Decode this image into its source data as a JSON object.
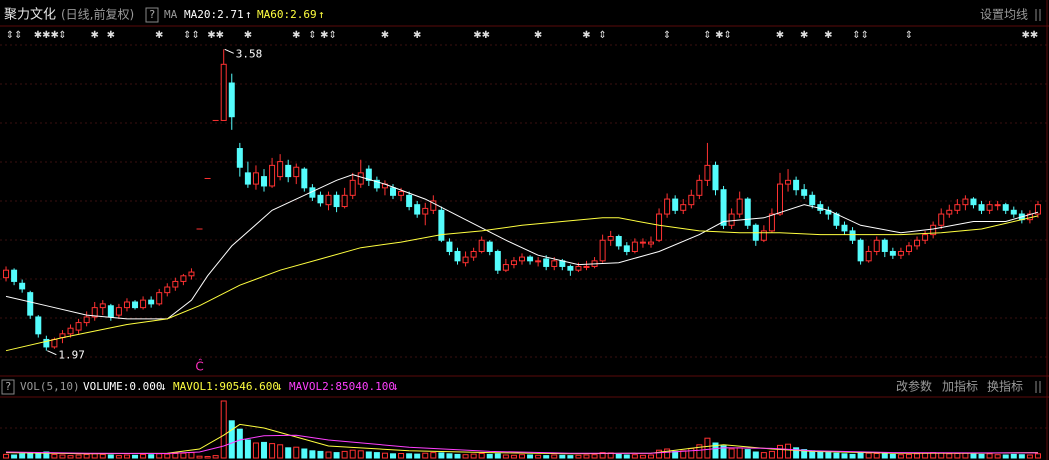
{
  "chart_data": [
    {
      "type": "candlestick",
      "title": "聚力文化",
      "subtitle": "(日线,前复权)",
      "help": "?",
      "ma_label": "MA",
      "settings_button": "设置均线",
      "ylim": [
        1.84,
        3.71
      ],
      "up_color": "#ff3232",
      "down_color": "#54fcfc",
      "open": [
        2.36,
        2.4,
        2.33,
        2.28,
        2.15,
        2.03,
        1.99,
        2.04,
        2.06,
        2.08,
        2.12,
        2.15,
        2.2,
        2.21,
        2.16,
        2.2,
        2.23,
        2.2,
        2.24,
        2.22,
        2.28,
        2.31,
        2.34,
        2.37,
        2.62,
        2.89,
        3.2,
        3.2,
        3.4,
        3.05,
        2.92,
        2.86,
        2.9,
        2.85,
        2.9,
        2.96,
        2.9,
        2.94,
        2.84,
        2.8,
        2.75,
        2.8,
        2.74,
        2.8,
        2.86,
        2.94,
        2.88,
        2.84,
        2.84,
        2.8,
        2.8,
        2.75,
        2.7,
        2.72,
        2.72,
        2.55,
        2.5,
        2.44,
        2.47,
        2.5,
        2.55,
        2.5,
        2.4,
        2.43,
        2.45,
        2.47,
        2.45,
        2.46,
        2.42,
        2.45,
        2.42,
        2.4,
        2.42,
        2.42,
        2.45,
        2.56,
        2.58,
        2.53,
        2.5,
        2.55,
        2.54,
        2.56,
        2.7,
        2.78,
        2.72,
        2.75,
        2.8,
        2.88,
        2.96,
        2.83,
        2.64,
        2.7,
        2.78,
        2.64,
        2.56,
        2.61,
        2.7,
        2.86,
        2.88,
        2.83,
        2.8,
        2.75,
        2.72,
        2.7,
        2.64,
        2.61,
        2.56,
        2.45,
        2.5,
        2.56,
        2.5,
        2.48,
        2.5,
        2.53,
        2.56,
        2.59,
        2.64,
        2.7,
        2.72,
        2.75,
        2.78,
        2.75,
        2.72,
        2.75,
        2.75,
        2.72,
        2.7,
        2.67,
        2.7
      ],
      "high": [
        2.42,
        2.41,
        2.35,
        2.29,
        2.16,
        2.05,
        2.04,
        2.08,
        2.11,
        2.14,
        2.18,
        2.23,
        2.24,
        2.22,
        2.22,
        2.25,
        2.24,
        2.26,
        2.26,
        2.3,
        2.33,
        2.36,
        2.38,
        2.41,
        2.62,
        2.89,
        3.2,
        3.58,
        3.45,
        3.08,
        2.98,
        2.96,
        2.94,
        3.0,
        3.02,
        2.99,
        2.97,
        2.95,
        2.86,
        2.82,
        2.82,
        2.82,
        2.84,
        2.92,
        2.99,
        2.96,
        2.9,
        2.88,
        2.86,
        2.84,
        2.82,
        2.77,
        2.76,
        2.8,
        2.74,
        2.57,
        2.52,
        2.5,
        2.52,
        2.58,
        2.56,
        2.51,
        2.46,
        2.47,
        2.49,
        2.48,
        2.47,
        2.48,
        2.47,
        2.46,
        2.43,
        2.44,
        2.45,
        2.47,
        2.59,
        2.61,
        2.59,
        2.55,
        2.57,
        2.57,
        2.58,
        2.73,
        2.81,
        2.8,
        2.78,
        2.83,
        2.91,
        3.08,
        2.98,
        2.85,
        2.73,
        2.82,
        2.79,
        2.65,
        2.64,
        2.73,
        2.92,
        2.94,
        2.9,
        2.86,
        2.82,
        2.77,
        2.74,
        2.71,
        2.66,
        2.63,
        2.57,
        2.53,
        2.58,
        2.57,
        2.52,
        2.52,
        2.55,
        2.58,
        2.61,
        2.66,
        2.73,
        2.75,
        2.78,
        2.8,
        2.79,
        2.77,
        2.77,
        2.77,
        2.76,
        2.74,
        2.72,
        2.72,
        2.77
      ],
      "low": [
        2.34,
        2.32,
        2.28,
        2.14,
        2.04,
        1.97,
        1.98,
        2.01,
        2.04,
        2.06,
        2.1,
        2.13,
        2.16,
        2.13,
        2.14,
        2.18,
        2.19,
        2.19,
        2.2,
        2.21,
        2.26,
        2.29,
        2.32,
        2.35,
        2.62,
        2.89,
        3.2,
        3.2,
        3.15,
        2.9,
        2.84,
        2.83,
        2.82,
        2.84,
        2.88,
        2.87,
        2.86,
        2.82,
        2.77,
        2.74,
        2.72,
        2.71,
        2.73,
        2.78,
        2.84,
        2.85,
        2.82,
        2.8,
        2.78,
        2.77,
        2.72,
        2.68,
        2.64,
        2.7,
        2.55,
        2.48,
        2.43,
        2.42,
        2.45,
        2.49,
        2.48,
        2.38,
        2.39,
        2.41,
        2.43,
        2.43,
        2.42,
        2.4,
        2.4,
        2.4,
        2.37,
        2.39,
        2.4,
        2.41,
        2.44,
        2.53,
        2.51,
        2.48,
        2.49,
        2.52,
        2.52,
        2.55,
        2.68,
        2.7,
        2.7,
        2.73,
        2.78,
        2.85,
        2.8,
        2.62,
        2.62,
        2.68,
        2.62,
        2.53,
        2.55,
        2.6,
        2.69,
        2.82,
        2.8,
        2.78,
        2.73,
        2.7,
        2.67,
        2.62,
        2.59,
        2.54,
        2.43,
        2.44,
        2.48,
        2.47,
        2.46,
        2.46,
        2.48,
        2.51,
        2.54,
        2.57,
        2.62,
        2.68,
        2.7,
        2.72,
        2.73,
        2.7,
        2.7,
        2.72,
        2.7,
        2.68,
        2.65,
        2.65,
        2.68
      ],
      "close": [
        2.4,
        2.34,
        2.3,
        2.16,
        2.06,
        1.99,
        2.03,
        2.06,
        2.09,
        2.12,
        2.15,
        2.2,
        2.22,
        2.15,
        2.2,
        2.23,
        2.2,
        2.24,
        2.22,
        2.28,
        2.31,
        2.34,
        2.37,
        2.39,
        2.62,
        2.89,
        3.2,
        3.5,
        3.22,
        2.95,
        2.86,
        2.92,
        2.85,
        2.96,
        2.98,
        2.9,
        2.95,
        2.84,
        2.79,
        2.76,
        2.8,
        2.74,
        2.8,
        2.88,
        2.92,
        2.88,
        2.84,
        2.86,
        2.8,
        2.82,
        2.74,
        2.7,
        2.73,
        2.77,
        2.56,
        2.5,
        2.45,
        2.47,
        2.5,
        2.56,
        2.5,
        2.4,
        2.43,
        2.45,
        2.47,
        2.45,
        2.45,
        2.42,
        2.45,
        2.42,
        2.4,
        2.42,
        2.42,
        2.45,
        2.56,
        2.58,
        2.53,
        2.5,
        2.55,
        2.55,
        2.55,
        2.7,
        2.78,
        2.72,
        2.75,
        2.8,
        2.88,
        2.96,
        2.83,
        2.64,
        2.7,
        2.78,
        2.64,
        2.56,
        2.61,
        2.7,
        2.86,
        2.88,
        2.83,
        2.8,
        2.75,
        2.72,
        2.7,
        2.64,
        2.61,
        2.56,
        2.45,
        2.5,
        2.56,
        2.5,
        2.48,
        2.5,
        2.53,
        2.56,
        2.59,
        2.64,
        2.7,
        2.72,
        2.75,
        2.78,
        2.75,
        2.72,
        2.75,
        2.75,
        2.72,
        2.7,
        2.67,
        2.7,
        2.75
      ],
      "ma": [
        {
          "name": "MA20:2.71",
          "arrow": "↑",
          "color": "#ffffff",
          "x": [
            0,
            5,
            10,
            15,
            20,
            23,
            25,
            28,
            33,
            37,
            41,
            43,
            47,
            52,
            57,
            62,
            66,
            71,
            76,
            81,
            86,
            89,
            94,
            99,
            102,
            106,
            111,
            115,
            120,
            124,
            128
          ],
          "values": [
            2.26,
            2.21,
            2.16,
            2.14,
            2.14,
            2.24,
            2.37,
            2.53,
            2.72,
            2.8,
            2.88,
            2.91,
            2.86,
            2.78,
            2.67,
            2.56,
            2.48,
            2.43,
            2.44,
            2.5,
            2.59,
            2.66,
            2.68,
            2.75,
            2.72,
            2.64,
            2.6,
            2.62,
            2.66,
            2.66,
            2.71
          ]
        },
        {
          "name": "MA60:2.69",
          "arrow": "↑",
          "color": "#ffff40",
          "x": [
            0,
            7,
            15,
            20,
            24,
            29,
            34,
            39,
            44,
            49,
            54,
            59,
            64,
            69,
            74,
            76,
            81,
            86,
            91,
            96,
            101,
            106,
            111,
            116,
            121,
            128
          ],
          "values": [
            1.97,
            2.04,
            2.11,
            2.14,
            2.21,
            2.32,
            2.4,
            2.46,
            2.52,
            2.55,
            2.59,
            2.61,
            2.64,
            2.66,
            2.68,
            2.68,
            2.64,
            2.61,
            2.6,
            2.6,
            2.59,
            2.59,
            2.59,
            2.6,
            2.62,
            2.69
          ]
        }
      ],
      "annotations": [
        {
          "x": 27,
          "value": 3.58
        },
        {
          "x": 5,
          "value": 1.97
        }
      ],
      "marker": {
        "x": 24,
        "label": "Ĉ",
        "color": "#ff30c0"
      },
      "signals": [
        {
          "x": 1,
          "label": "⇕⇕"
        },
        {
          "x": 5,
          "label": "✱✱✱"
        },
        {
          "x": 7,
          "label": "⇕"
        },
        {
          "x": 11,
          "label": "✱"
        },
        {
          "x": 13,
          "label": "✱"
        },
        {
          "x": 19,
          "label": "✱"
        },
        {
          "x": 23,
          "label": "⇕⇕"
        },
        {
          "x": 26,
          "label": "✱✱"
        },
        {
          "x": 30,
          "label": "✱"
        },
        {
          "x": 36,
          "label": "✱"
        },
        {
          "x": 38,
          "label": "⇕"
        },
        {
          "x": 40,
          "label": "✱⇕"
        },
        {
          "x": 47,
          "label": "✱"
        },
        {
          "x": 51,
          "label": "✱"
        },
        {
          "x": 59,
          "label": "✱✱"
        },
        {
          "x": 66,
          "label": "✱"
        },
        {
          "x": 72,
          "label": "✱"
        },
        {
          "x": 74,
          "label": "⇕"
        },
        {
          "x": 82,
          "label": "⇕"
        },
        {
          "x": 87,
          "label": "⇕"
        },
        {
          "x": 89,
          "label": "✱⇕"
        },
        {
          "x": 96,
          "label": "✱"
        },
        {
          "x": 99,
          "label": "✱"
        },
        {
          "x": 102,
          "label": "✱"
        },
        {
          "x": 106,
          "label": "⇕⇕"
        },
        {
          "x": 112,
          "label": "⇕"
        },
        {
          "x": 127,
          "label": "✱✱"
        }
      ]
    },
    {
      "type": "volume",
      "help": "?",
      "name": "VOL(5,10)",
      "volume_label": "VOLUME:0.000",
      "volume_arrow": "↓",
      "ylim": [
        0,
        1000000
      ],
      "values": [
        60000,
        50000,
        70000,
        90000,
        80000,
        100000,
        60000,
        50000,
        40000,
        50000,
        60000,
        70000,
        60000,
        50000,
        40000,
        50000,
        45000,
        60000,
        55000,
        70000,
        65000,
        75000,
        80000,
        90000,
        30000,
        25000,
        40000,
        950000,
        620000,
        480000,
        300000,
        250000,
        260000,
        240000,
        220000,
        170000,
        180000,
        150000,
        120000,
        110000,
        100000,
        90000,
        110000,
        130000,
        120000,
        100000,
        90000,
        80000,
        70000,
        75000,
        70000,
        65000,
        80000,
        90000,
        85000,
        70000,
        60000,
        55000,
        65000,
        75000,
        60000,
        70000,
        50000,
        45000,
        55000,
        50000,
        45000,
        40000,
        50000,
        45000,
        40000,
        45000,
        50000,
        55000,
        90000,
        85000,
        60000,
        50000,
        55000,
        45000,
        50000,
        130000,
        150000,
        110000,
        120000,
        160000,
        220000,
        330000,
        250000,
        200000,
        150000,
        170000,
        140000,
        100000,
        90000,
        110000,
        210000,
        230000,
        170000,
        140000,
        120000,
        100000,
        90000,
        80000,
        70000,
        60000,
        90000,
        80000,
        75000,
        70000,
        60000,
        55000,
        60000,
        70000,
        80000,
        90000,
        85000,
        70000,
        75000,
        80000,
        65000,
        60000,
        70000,
        55000,
        50000,
        60000,
        55000,
        50000,
        70000
      ],
      "series": [
        {
          "name": "MAVOL1:90546.600",
          "arrow": "↓",
          "color": "#ffff40",
          "x": [
            0,
            10,
            20,
            24,
            27,
            29,
            32,
            36,
            40,
            50,
            60,
            70,
            80,
            86,
            89,
            95,
            100,
            110,
            120,
            128
          ],
          "values": [
            90000,
            70000,
            80000,
            150000,
            380000,
            560000,
            500000,
            350000,
            200000,
            120000,
            90000,
            70000,
            80000,
            180000,
            220000,
            150000,
            110000,
            80000,
            80000,
            90546.6
          ]
        },
        {
          "name": "MAVOL2:85040.100",
          "arrow": "↓",
          "color": "#ff40ff",
          "x": [
            0,
            10,
            20,
            24,
            27,
            29,
            32,
            36,
            40,
            50,
            60,
            70,
            80,
            86,
            89,
            95,
            100,
            110,
            120,
            128
          ],
          "values": [
            100000,
            80000,
            75000,
            100000,
            200000,
            300000,
            370000,
            380000,
            300000,
            180000,
            110000,
            80000,
            80000,
            130000,
            170000,
            160000,
            120000,
            90000,
            85000,
            85040.1
          ]
        }
      ],
      "buttons": [
        "改参数",
        "加指标",
        "换指标"
      ]
    }
  ]
}
